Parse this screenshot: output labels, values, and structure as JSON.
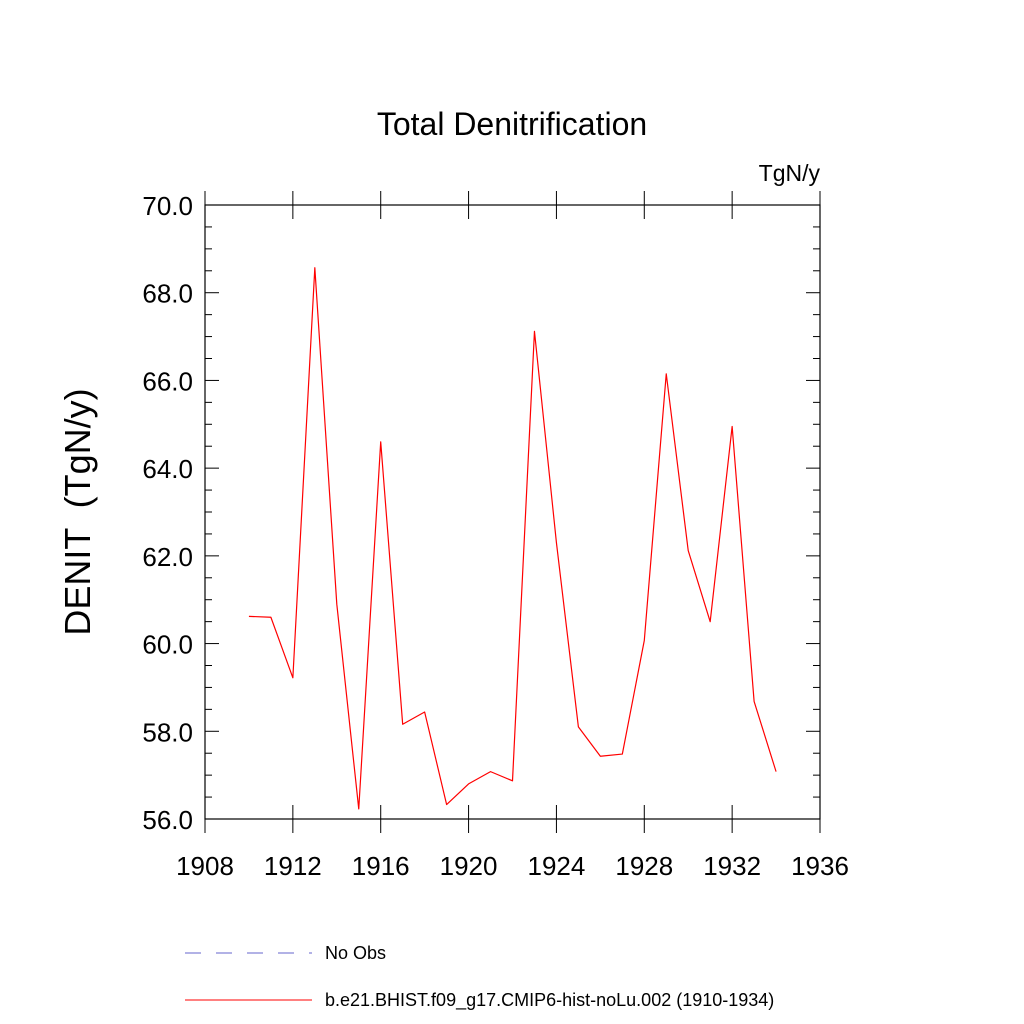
{
  "chart_data": {
    "type": "line",
    "title": "Total Denitrification",
    "units": "TgN/y",
    "ylabel": "DENIT  (TgN/y)",
    "xlabel": "",
    "xlim": [
      1908,
      1936
    ],
    "ylim": [
      56.0,
      70.0
    ],
    "x_ticks": [
      1908,
      1912,
      1916,
      1920,
      1924,
      1928,
      1932,
      1936
    ],
    "x_tick_labels": [
      "1908",
      "1912",
      "1916",
      "1920",
      "1924",
      "1928",
      "1932",
      "1936"
    ],
    "y_ticks": [
      56.0,
      58.0,
      60.0,
      62.0,
      64.0,
      66.0,
      68.0,
      70.0
    ],
    "y_tick_labels": [
      "56.0",
      "58.0",
      "60.0",
      "62.0",
      "64.0",
      "66.0",
      "68.0",
      "70.0"
    ],
    "grid": false,
    "legend_position": "bottom",
    "series": [
      {
        "name": "b.e21.BHIST.f09_g17.CMIP6-hist-noLu.002 (1910-1934)",
        "color": "#ff0000",
        "style": "solid",
        "x": [
          1910,
          1911,
          1912,
          1913,
          1914,
          1915,
          1916,
          1917,
          1918,
          1919,
          1920,
          1921,
          1922,
          1923,
          1924,
          1925,
          1926,
          1927,
          1928,
          1929,
          1930,
          1931,
          1932,
          1933,
          1934
        ],
        "values": [
          60.62,
          60.6,
          59.22,
          68.57,
          60.9,
          56.23,
          64.6,
          58.16,
          58.44,
          56.33,
          56.8,
          57.08,
          56.87,
          67.12,
          62.3,
          58.1,
          57.43,
          57.48,
          60.07,
          66.15,
          62.12,
          60.5,
          64.95,
          58.68,
          57.08
        ]
      }
    ],
    "legend": [
      {
        "label": "No Obs",
        "color": "#6666cc",
        "style": "dashed"
      },
      {
        "label": "b.e21.BHIST.f09_g17.CMIP6-hist-noLu.002 (1910-1934)",
        "color": "#ff0000",
        "style": "solid"
      }
    ]
  }
}
